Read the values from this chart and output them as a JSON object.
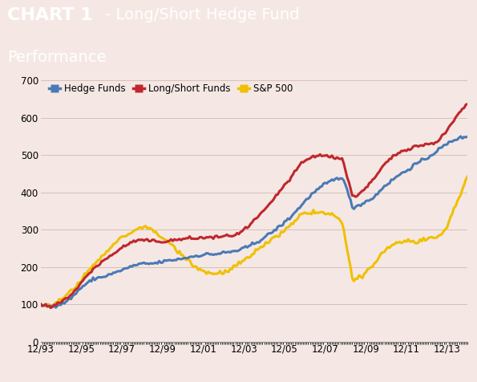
{
  "title_bold": "CHART 1",
  "title_normal": " - Long/Short Hedge Fund\nPerformance",
  "title_bg": "#c0272d",
  "title_text_color": "#ffffff",
  "plot_bg": "#f5e8e4",
  "outer_bg": "#f5e8e4",
  "ylim": [
    0,
    700
  ],
  "yticks": [
    0,
    100,
    200,
    300,
    400,
    500,
    600,
    700
  ],
  "xtick_labels": [
    "12/93",
    "12/95",
    "12/97",
    "12/99",
    "12/01",
    "12/03",
    "12/05",
    "12/07",
    "12/09",
    "12/11",
    "12/13"
  ],
  "hedge_color": "#4a7ab5",
  "longshort_color": "#c0272d",
  "sp500_color": "#f0c000",
  "line_width": 2.2,
  "legend_labels": [
    "Hedge Funds",
    "Long/Short Funds",
    "S&P 500"
  ],
  "noise_seed": 42,
  "n_months": 253,
  "start_year": 1993,
  "hedge_anchors": [
    100,
    93,
    100,
    120,
    150,
    170,
    178,
    188,
    200,
    210,
    215,
    215,
    220,
    225,
    230,
    235,
    240,
    242,
    246,
    250,
    260,
    275,
    295,
    315,
    340,
    370,
    400,
    420,
    437,
    445,
    360,
    375,
    390,
    420,
    440,
    455,
    475,
    490,
    510,
    530,
    545,
    550
  ],
  "longshort_anchors": [
    100,
    93,
    108,
    130,
    165,
    200,
    222,
    242,
    262,
    275,
    278,
    276,
    275,
    278,
    282,
    283,
    284,
    285,
    287,
    290,
    310,
    340,
    370,
    410,
    440,
    480,
    498,
    505,
    500,
    495,
    390,
    410,
    440,
    480,
    505,
    520,
    530,
    535,
    540,
    570,
    615,
    645
  ],
  "sp500_anchors": [
    100,
    96,
    110,
    137,
    168,
    200,
    228,
    255,
    280,
    295,
    310,
    290,
    270,
    245,
    220,
    195,
    180,
    178,
    180,
    200,
    215,
    240,
    260,
    280,
    300,
    330,
    335,
    335,
    330,
    310,
    152,
    168,
    200,
    235,
    255,
    260,
    258,
    260,
    265,
    295,
    365,
    430
  ]
}
